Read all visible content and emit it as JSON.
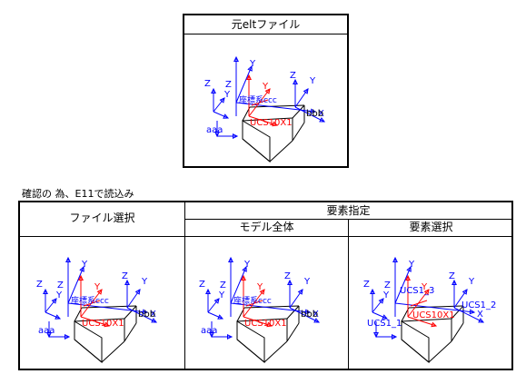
{
  "top": {
    "title": "元eltファイル"
  },
  "caption": "確認の 為、E11で読込み",
  "table": {
    "col1_header": "ファイル選択",
    "group_header": "要素指定",
    "col2_header": "モデル全体",
    "col3_header": "要素選択"
  },
  "diagram_labels": {
    "axis_z": "Z",
    "axis_y": "Y",
    "axis_x": "X",
    "origin_text": "座標系ccc",
    "ucs_label": "UCS10X1",
    "aaa": "aaa",
    "bbb": "bbb"
  },
  "selection_labels": {
    "ucs1_3": "UCS1_3",
    "ucs1_2": "UCS1_2",
    "ucs1_1": "UCS1_1"
  },
  "colors": {
    "blue": "#0000ff",
    "red": "#ff0000",
    "frame": "#000000"
  }
}
